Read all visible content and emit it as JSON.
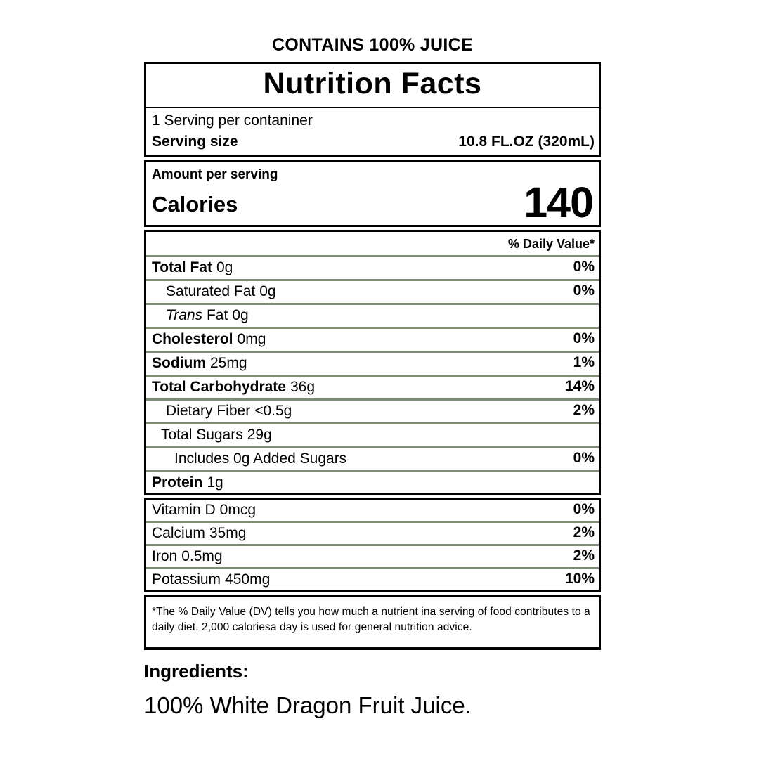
{
  "colors": {
    "separator_green": "#7d8d76",
    "border_black": "#000000",
    "background": "#ffffff"
  },
  "header": {
    "contains": "CONTAINS 100% JUICE"
  },
  "label": {
    "title": "Nutrition Facts",
    "servings_per_container": "1 Serving per contaniner",
    "serving_size_label": "Serving size",
    "serving_size_value": "10.8 FL.OZ (320mL)",
    "amount_per_serving": "Amount per serving",
    "calories_label": "Calories",
    "calories_value": "140",
    "daily_value_header": "% Daily Value*",
    "nutrient_rows": [
      {
        "name": "Total Fat",
        "value": "0g",
        "dv": "0%",
        "emphasis": true,
        "indent": 0
      },
      {
        "name": "Saturated Fat",
        "value": "0g",
        "dv": "0%",
        "emphasis": false,
        "indent": 1
      },
      {
        "name_italic": "Trans",
        "name": " Fat",
        "value": "0g",
        "dv": "",
        "emphasis": false,
        "indent": 1
      },
      {
        "name": "Cholesterol",
        "value": "0mg",
        "dv": "0%",
        "emphasis": true,
        "indent": 0
      },
      {
        "name": "Sodium",
        "value": "25mg",
        "dv": "1%",
        "emphasis": true,
        "indent": 0
      },
      {
        "name": "Total Carbohydrate",
        "value": "36g",
        "dv": "14%",
        "emphasis": true,
        "indent": 0
      },
      {
        "name": "Dietary Fiber",
        "value": "<0.5g",
        "dv": "2%",
        "emphasis": false,
        "indent": 1
      },
      {
        "name": "Total Sugars",
        "value": "29g",
        "dv": "",
        "emphasis": false,
        "indent": 2
      },
      {
        "name": "Includes 0g Added Sugars",
        "value": "",
        "dv": "0%",
        "emphasis": false,
        "indent": 3
      },
      {
        "name": "Protein",
        "value": "1g",
        "dv": "",
        "emphasis": true,
        "indent": 0
      }
    ],
    "vitamin_rows": [
      {
        "name": "Vitamin D",
        "value": "0mcg",
        "dv": "0%",
        "emphasis": false,
        "indent": 0
      },
      {
        "name": "Calcium",
        "value": "35mg",
        "dv": "2%",
        "emphasis": false,
        "indent": 0
      },
      {
        "name": "Iron",
        "value": "0.5mg",
        "dv": "2%",
        "emphasis": false,
        "indent": 0
      },
      {
        "name": "Potassium",
        "value": "450mg",
        "dv": "10%",
        "emphasis": false,
        "indent": 0
      }
    ],
    "footnote": "*The % Daily Value (DV) tells you how much a nutrient ina serving of food contributes to a daily diet. 2,000 caloriesa day is used for general nutrition advice."
  },
  "ingredients": {
    "heading": "Ingredients:",
    "text": "100% White Dragon Fruit Juice."
  }
}
